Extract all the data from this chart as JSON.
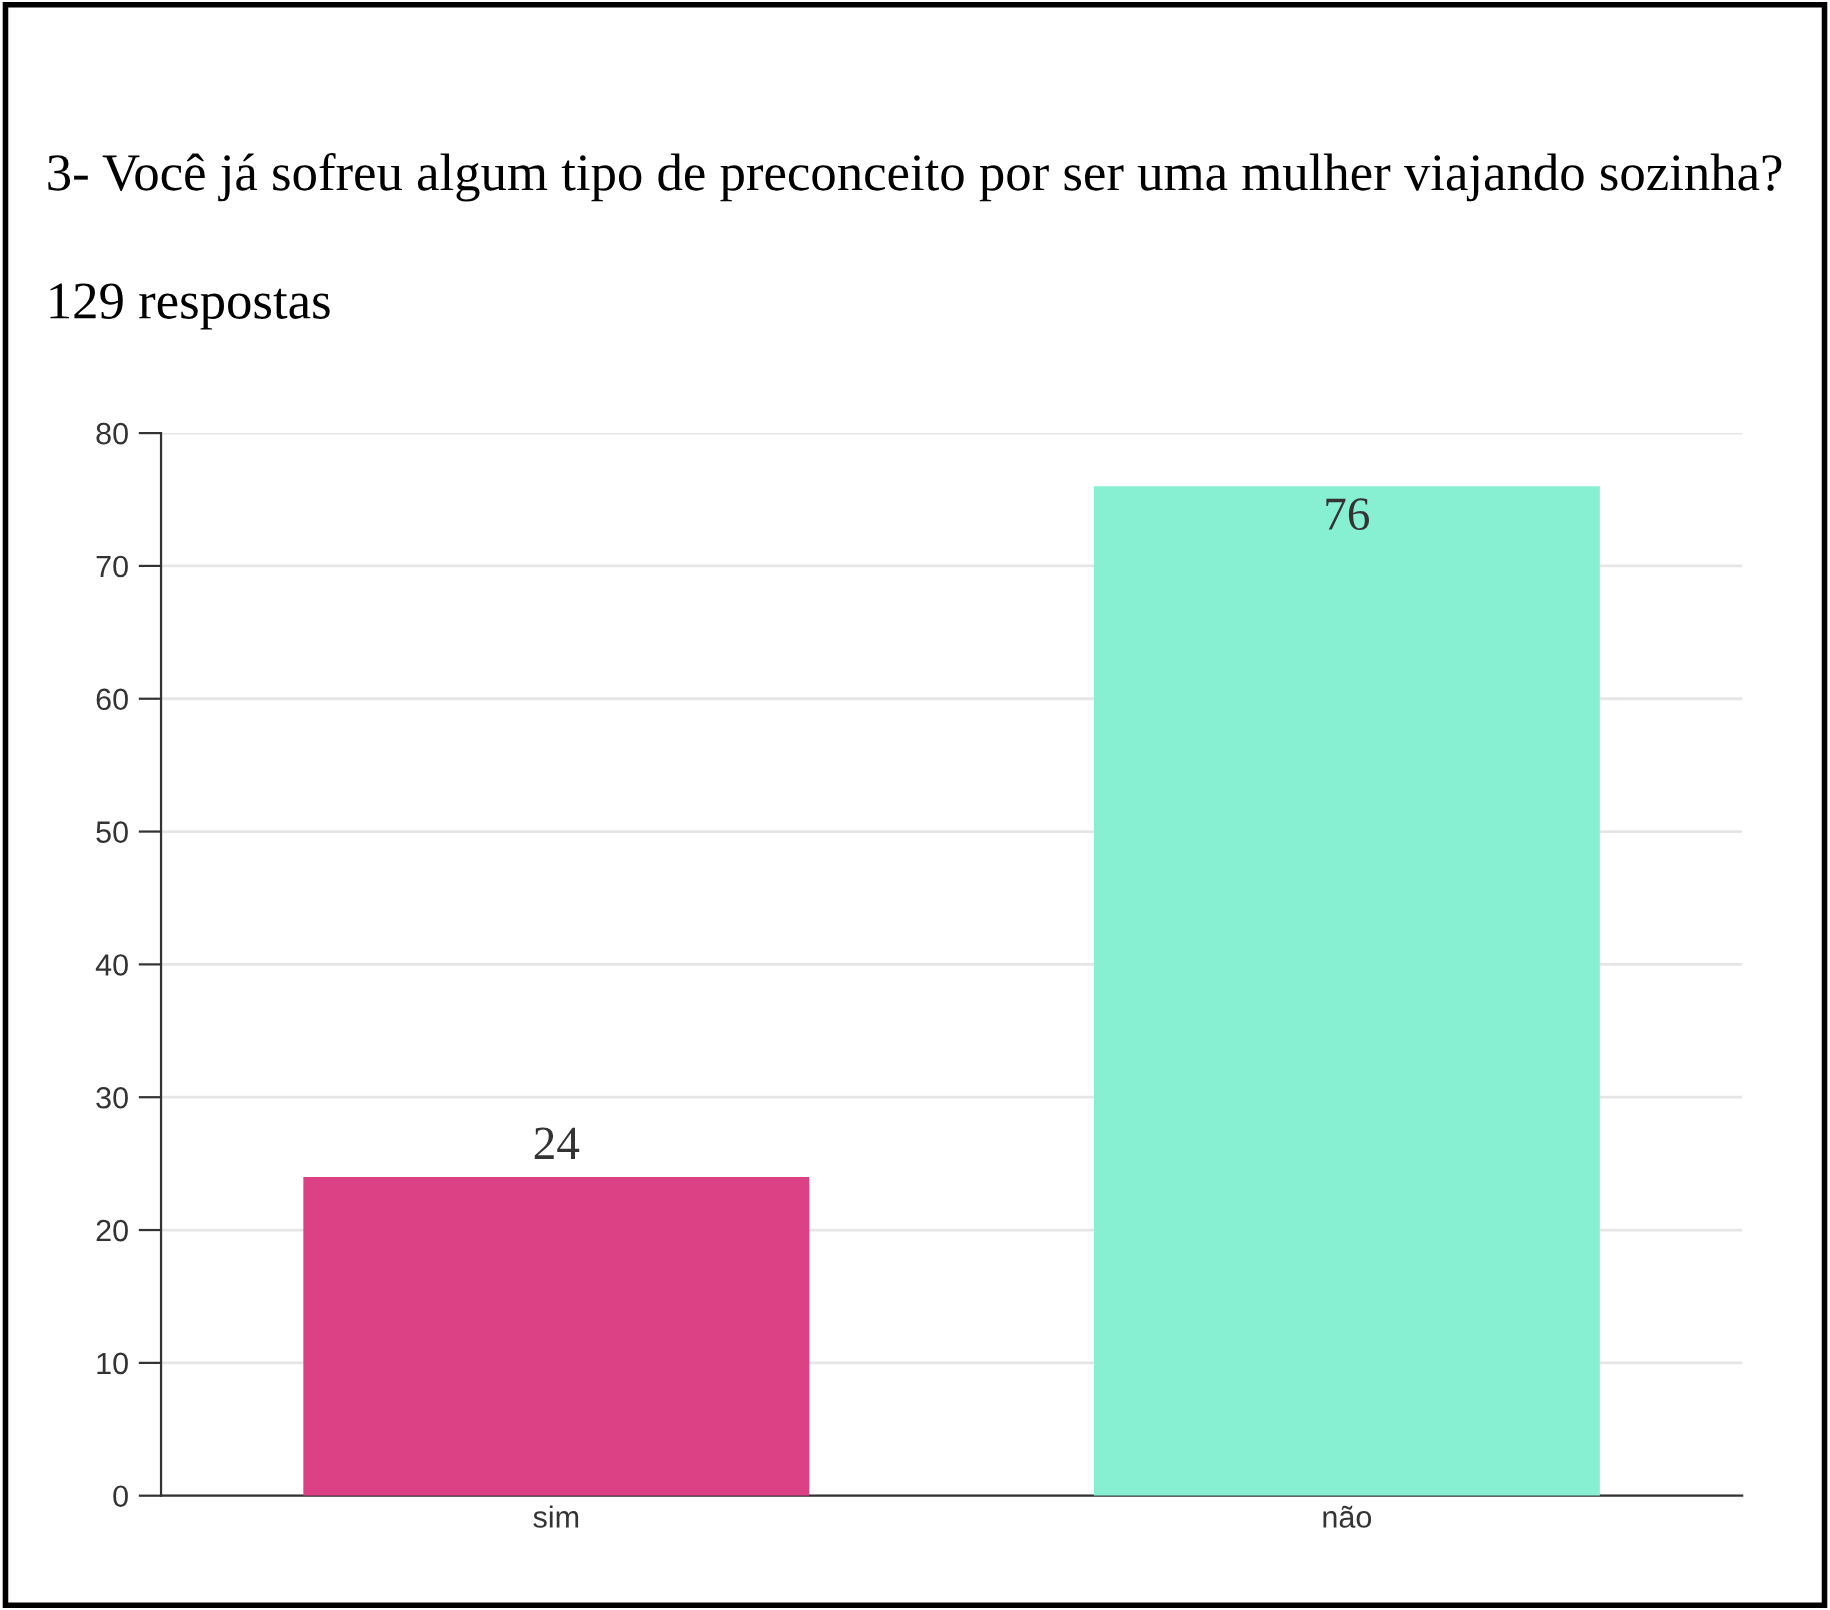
{
  "chart_data": {
    "type": "bar",
    "title": "3- Você já sofreu algum tipo de preconceito por ser uma mulher viajando sozinha?",
    "subtitle": "129 respostas",
    "categories": [
      "sim",
      "não"
    ],
    "values": [
      24,
      76
    ],
    "colors": [
      "#dc4085",
      "#87f0d3"
    ],
    "ylim": [
      0,
      80
    ],
    "yticks": [
      0,
      10,
      20,
      30,
      40,
      50,
      60,
      70,
      80
    ],
    "grid": "y",
    "data_labels": true,
    "legend": false
  }
}
